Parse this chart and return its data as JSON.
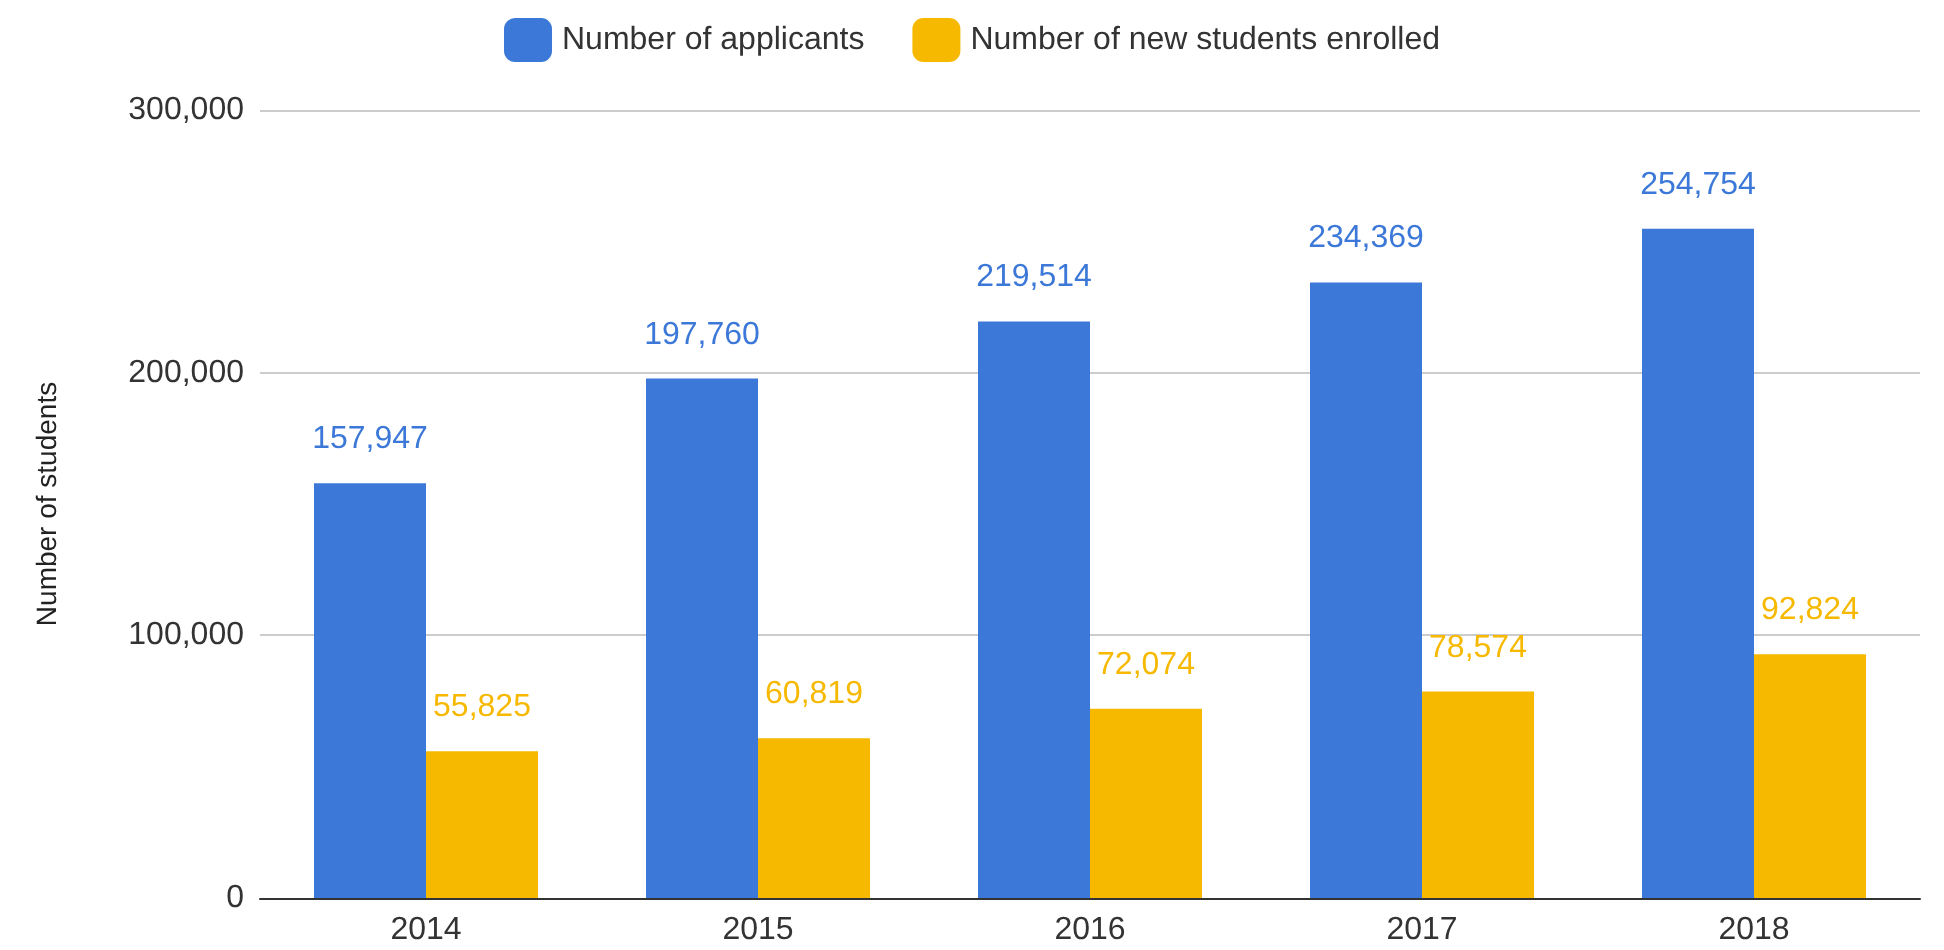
{
  "chart_data": {
    "type": "bar",
    "ylabel": "Number of students",
    "categories": [
      "2014",
      "2015",
      "2016",
      "2017",
      "2018"
    ],
    "series": [
      {
        "name": "Number of applicants",
        "color": "#3c78d8",
        "values": [
          157947,
          197760,
          219514,
          234369,
          254754
        ],
        "value_labels": [
          "157,947",
          "197,760",
          "219,514",
          "234,369",
          "254,754"
        ]
      },
      {
        "name": "Number of new students enrolled",
        "color": "#f6b900",
        "values": [
          55825,
          60819,
          72074,
          78574,
          92824
        ],
        "value_labels": [
          "55,825",
          "60,819",
          "72,074",
          "78,574",
          "92,824"
        ]
      }
    ],
    "ylim": [
      0,
      300000
    ],
    "yticks": [
      {
        "value": 0,
        "label": "0"
      },
      {
        "value": 100000,
        "label": "100,000"
      },
      {
        "value": 200000,
        "label": "200,000"
      },
      {
        "value": 300000,
        "label": "300,000"
      }
    ],
    "grid": "y",
    "legend": "top"
  }
}
